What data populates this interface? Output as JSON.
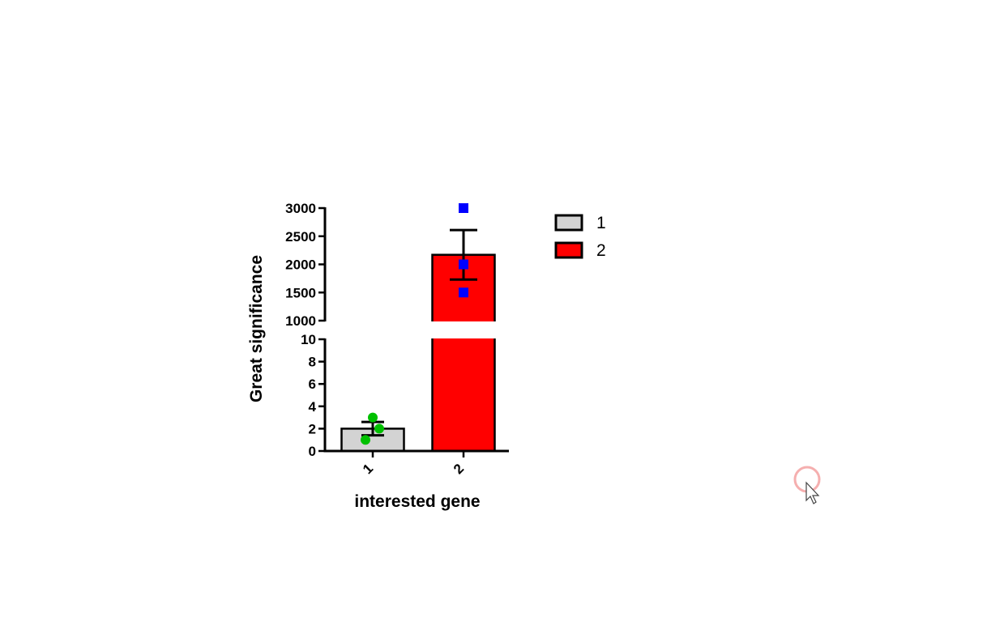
{
  "chart_data": {
    "type": "bar",
    "categories": [
      "1",
      "2"
    ],
    "ylabel": "Great significance",
    "xlabel": "interested gene",
    "y_axis_break": {
      "lower_range": [
        0,
        10
      ],
      "upper_range": [
        1000,
        3000
      ]
    },
    "lower_ticks": [
      "0",
      "2",
      "4",
      "6",
      "8",
      "10"
    ],
    "upper_ticks": [
      "1000",
      "1500",
      "2000",
      "2500",
      "3000"
    ],
    "series": [
      {
        "category": "1",
        "mean": 2,
        "error_low": 1.4,
        "error_high": 2.6,
        "points": [
          1,
          2,
          3
        ],
        "fill_color": "#d3d3d3",
        "point_color": "#00c000",
        "point_shape": "circle"
      },
      {
        "category": "2",
        "mean": 2170,
        "error_low": 1730,
        "error_high": 2610,
        "points": [
          1500,
          2000,
          3000
        ],
        "fill_color": "#ff0000",
        "point_color": "#0000ff",
        "point_shape": "square"
      }
    ],
    "legend": {
      "placement": "top-right",
      "entries": [
        {
          "label": "1",
          "color": "#d3d3d3"
        },
        {
          "label": "2",
          "color": "#ff0000"
        }
      ]
    }
  }
}
